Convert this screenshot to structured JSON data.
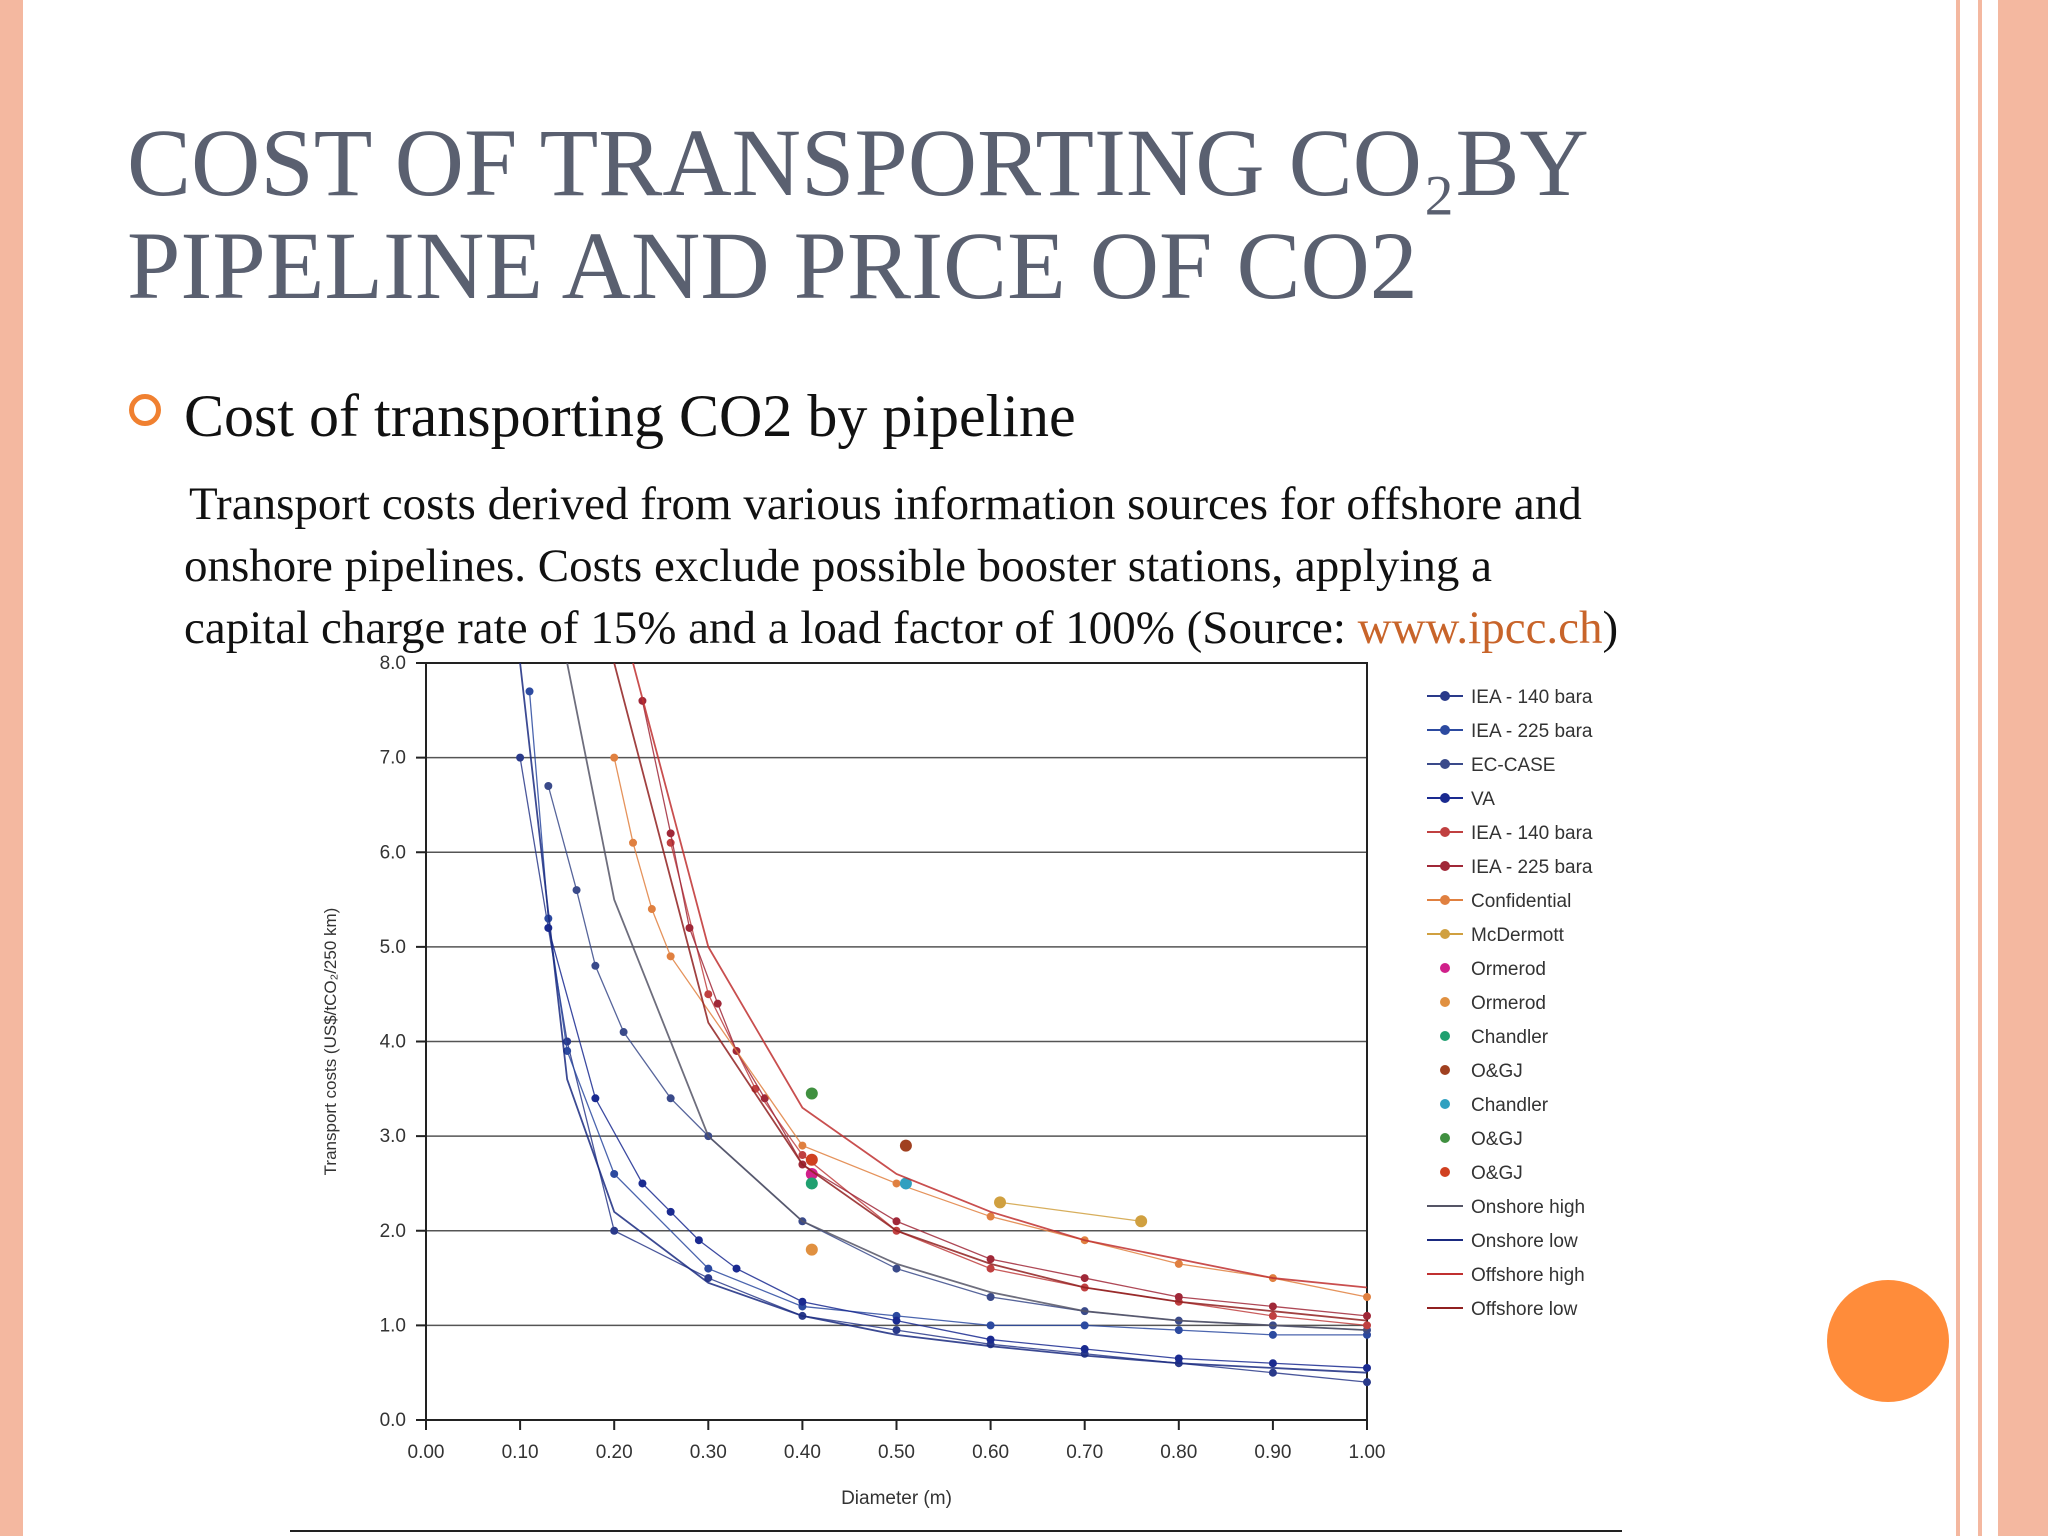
{
  "slide": {
    "title": [
      "COST OF TRANSPORTING CO₂BY",
      "PIPELINE AND PRICE OF CO2"
    ],
    "bullet": "Cost of transporting CO2 by pipeline",
    "paragraph": [
      "Transport costs derived from various information sources for offshore and",
      "onshore pipelines. Costs exclude possible booster stations, applying a",
      "capital charge rate of 15% and a load factor of 100% (Source: "
    ],
    "link": "www.ipcc.ch",
    "paragraph_end": ")"
  },
  "chart_data": {
    "type": "line",
    "xlabel": "Diameter (m)",
    "ylabel": "Transport costs (US$/tCO₂/250 km)",
    "xlim": [
      0,
      1
    ],
    "ylim": [
      0,
      8
    ],
    "xticks": [
      {
        "value": 0,
        "label": "0.00"
      },
      {
        "value": 0.1,
        "label": "0.10"
      },
      {
        "value": 0.2,
        "label": "0.20"
      },
      {
        "value": 0.3,
        "label": "0.30"
      },
      {
        "value": 0.4,
        "label": "0.40"
      },
      {
        "value": 0.5,
        "label": "0.50"
      },
      {
        "value": 0.6,
        "label": "0.60"
      },
      {
        "value": 0.7,
        "label": "0.70"
      },
      {
        "value": 0.8,
        "label": "0.80"
      },
      {
        "value": 0.9,
        "label": "0.90"
      },
      {
        "value": 1,
        "label": "1.00"
      }
    ],
    "yticks": [
      {
        "value": 0,
        "label": "0.0"
      },
      {
        "value": 1,
        "label": "1.0"
      },
      {
        "value": 2,
        "label": "2.0"
      },
      {
        "value": 3,
        "label": "3.0"
      },
      {
        "value": 4,
        "label": "4.0"
      },
      {
        "value": 5,
        "label": "5.0"
      },
      {
        "value": 6,
        "label": "6.0"
      },
      {
        "value": 7,
        "label": "7.0"
      },
      {
        "value": 8,
        "label": "8.0"
      }
    ],
    "grid": true,
    "legend": "right",
    "series": [
      {
        "name": "IEA - 140 bara",
        "color": "#2a3a8a",
        "markers": true,
        "x": [
          0.1,
          0.15,
          0.2,
          0.3,
          0.4,
          0.5,
          0.6,
          0.7,
          0.8,
          0.9,
          1.0
        ],
        "values": [
          7.0,
          4.0,
          2.0,
          1.5,
          1.1,
          0.95,
          0.8,
          0.7,
          0.6,
          0.5,
          0.4
        ]
      },
      {
        "name": "IEA - 225 bara",
        "color": "#2c4aa0",
        "markers": true,
        "x": [
          0.11,
          0.13,
          0.15,
          0.2,
          0.3,
          0.4,
          0.5,
          0.6,
          0.7,
          0.8,
          0.9,
          1.0
        ],
        "values": [
          7.7,
          5.3,
          3.9,
          2.6,
          1.6,
          1.2,
          1.1,
          1.0,
          1.0,
          0.95,
          0.9,
          0.9
        ]
      },
      {
        "name": "EC-CASE",
        "color": "#3a4a8a",
        "markers": true,
        "x": [
          0.13,
          0.16,
          0.18,
          0.21,
          0.26,
          0.3,
          0.4,
          0.5,
          0.6,
          0.7,
          0.8,
          0.9,
          1.0
        ],
        "values": [
          6.7,
          5.6,
          4.8,
          4.1,
          3.4,
          3.0,
          2.1,
          1.6,
          1.3,
          1.15,
          1.05,
          1.0,
          0.95
        ]
      },
      {
        "name": "VA",
        "color": "#1a2a90",
        "markers": true,
        "x": [
          0.13,
          0.18,
          0.23,
          0.26,
          0.29,
          0.33,
          0.4,
          0.5,
          0.6,
          0.7,
          0.8,
          0.9,
          1.0
        ],
        "values": [
          5.2,
          3.4,
          2.5,
          2.2,
          1.9,
          1.6,
          1.25,
          1.05,
          0.85,
          0.75,
          0.65,
          0.6,
          0.55
        ]
      },
      {
        "name": "IEA - 140 bara",
        "color": "#c04040",
        "markers": true,
        "x": [
          0.26,
          0.3,
          0.35,
          0.4,
          0.5,
          0.6,
          0.7,
          0.8,
          0.9,
          1.0
        ],
        "values": [
          6.1,
          4.5,
          3.5,
          2.8,
          2.0,
          1.6,
          1.4,
          1.25,
          1.1,
          1.0
        ]
      },
      {
        "name": "IEA - 225 bara",
        "color": "#a02838",
        "markers": true,
        "x": [
          0.23,
          0.26,
          0.28,
          0.31,
          0.33,
          0.36,
          0.4,
          0.5,
          0.6,
          0.7,
          0.8,
          0.9,
          1.0
        ],
        "values": [
          7.6,
          6.2,
          5.2,
          4.4,
          3.9,
          3.4,
          2.7,
          2.1,
          1.7,
          1.5,
          1.3,
          1.2,
          1.1
        ]
      },
      {
        "name": "Confidential",
        "color": "#e08040",
        "markers": true,
        "x": [
          0.2,
          0.22,
          0.24,
          0.26,
          0.4,
          0.5,
          0.6,
          0.7,
          0.8,
          0.9,
          1.0
        ],
        "values": [
          7.0,
          6.1,
          5.4,
          4.9,
          2.9,
          2.5,
          2.15,
          1.9,
          1.65,
          1.5,
          1.3
        ]
      },
      {
        "name": "McDermott",
        "color": "#d0a040",
        "markers": true,
        "x": [
          0.61,
          0.76
        ],
        "values": [
          2.3,
          2.1
        ]
      },
      {
        "name": "Ormerod",
        "color": "#d0208a",
        "markers": true,
        "x": [
          0.41
        ],
        "values": [
          2.6
        ]
      },
      {
        "name": "Ormerod",
        "color": "#e09040",
        "markers": true,
        "x": [
          0.41
        ],
        "values": [
          1.8
        ]
      },
      {
        "name": "Chandler",
        "color": "#20a070",
        "markers": true,
        "x": [
          0.41
        ],
        "values": [
          2.5
        ]
      },
      {
        "name": "O&GJ",
        "color": "#a04020",
        "markers": true,
        "x": [
          0.51
        ],
        "values": [
          2.9
        ]
      },
      {
        "name": "Chandler",
        "color": "#30a0c0",
        "markers": true,
        "x": [
          0.51
        ],
        "values": [
          2.5
        ]
      },
      {
        "name": "O&GJ",
        "color": "#409040",
        "markers": true,
        "x": [
          0.41
        ],
        "values": [
          3.45
        ]
      },
      {
        "name": "O&GJ",
        "color": "#d04020",
        "markers": true,
        "x": [
          0.41
        ],
        "values": [
          2.75
        ]
      },
      {
        "name": "Onshore high",
        "color": "#555566",
        "markers": false,
        "x": [
          0.15,
          0.2,
          0.3,
          0.4,
          0.5,
          0.6,
          0.7,
          0.8,
          0.9,
          1.0
        ],
        "values": [
          8.0,
          5.5,
          3.0,
          2.1,
          1.65,
          1.35,
          1.15,
          1.05,
          1.0,
          0.95
        ]
      },
      {
        "name": "Onshore low",
        "color": "#1a2a80",
        "markers": false,
        "x": [
          0.1,
          0.15,
          0.2,
          0.3,
          0.4,
          0.5,
          0.6,
          0.7,
          0.8,
          0.9,
          1.0
        ],
        "values": [
          8.0,
          3.6,
          2.2,
          1.45,
          1.1,
          0.9,
          0.78,
          0.68,
          0.6,
          0.55,
          0.5
        ]
      },
      {
        "name": "Offshore high",
        "color": "#c03030",
        "markers": false,
        "x": [
          0.22,
          0.3,
          0.4,
          0.5,
          0.6,
          0.7,
          0.8,
          0.9,
          1.0
        ],
        "values": [
          8.0,
          5.0,
          3.3,
          2.6,
          2.2,
          1.9,
          1.7,
          1.5,
          1.4
        ]
      },
      {
        "name": "Offshore low",
        "color": "#902020",
        "markers": false,
        "x": [
          0.2,
          0.3,
          0.4,
          0.5,
          0.6,
          0.7,
          0.8,
          0.9,
          1.0
        ],
        "values": [
          8.0,
          4.2,
          2.7,
          2.0,
          1.65,
          1.4,
          1.25,
          1.15,
          1.05
        ]
      }
    ]
  }
}
